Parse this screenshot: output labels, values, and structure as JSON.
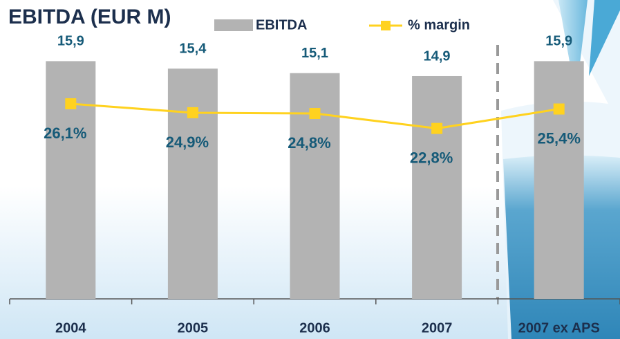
{
  "chart_data": {
    "type": "bar-line",
    "title": "EBITDA (EUR M)",
    "categories": [
      "2004",
      "2005",
      "2006",
      "2007",
      "2007 ex APS"
    ],
    "series": [
      {
        "name": "EBITDA",
        "color": "#b3b3b3",
        "values": [
          15.9,
          15.4,
          15.1,
          14.9,
          15.9
        ],
        "value_labels": [
          "15,9",
          "15,4",
          "15,1",
          "14,9",
          "15,9"
        ]
      },
      {
        "name": "% margin",
        "color": "#ffd21f",
        "axis": "y2",
        "values": [
          26.1,
          24.9,
          24.8,
          22.8,
          25.4
        ],
        "value_labels": [
          "26,1%",
          "24,9%",
          "24,8%",
          "22,8%",
          "25,4%"
        ]
      }
    ],
    "ylim": [
      0,
      18
    ],
    "y2lim": [
      0,
      36
    ]
  }
}
